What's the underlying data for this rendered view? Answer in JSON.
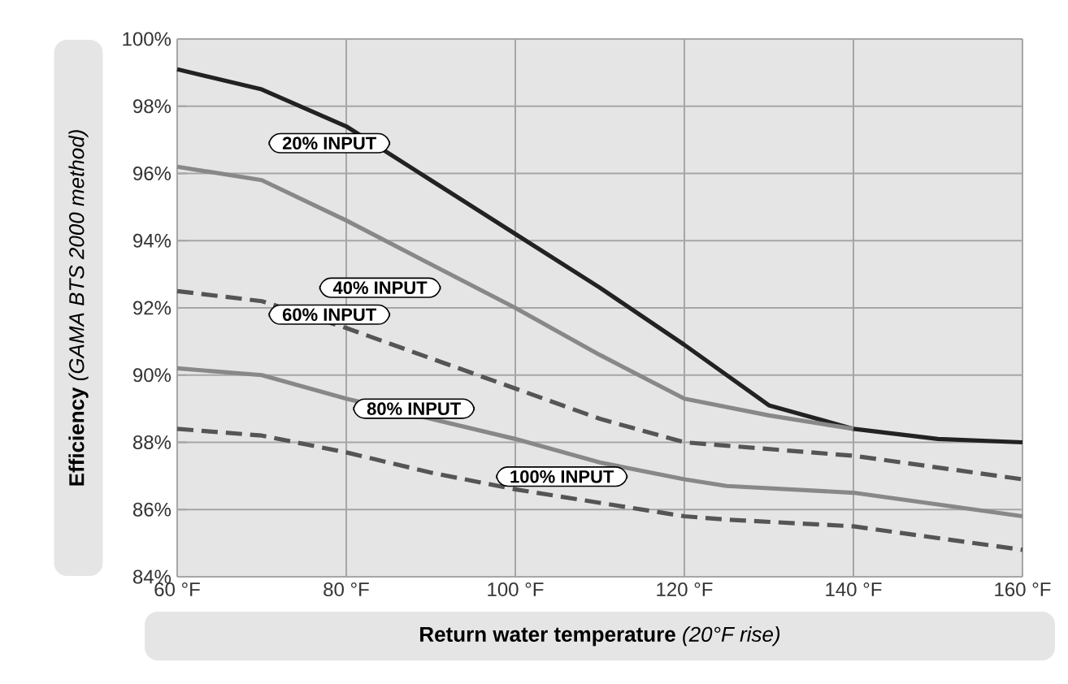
{
  "chart_data": {
    "type": "line",
    "ylabel": "**Efficiency** *(GAMA BTS 2000 method)*",
    "xlabel": "**Return water temperature** *(20°F rise)*",
    "xlim": [
      60,
      160
    ],
    "xticks": [
      {
        "value": 60,
        "label": "60 °F"
      },
      {
        "value": 80,
        "label": "80 °F"
      },
      {
        "value": 100,
        "label": "100 °F"
      },
      {
        "value": 120,
        "label": "120 °F"
      },
      {
        "value": 140,
        "label": "140 °F"
      },
      {
        "value": 160,
        "label": "160 °F"
      }
    ],
    "ylim": [
      84,
      100
    ],
    "yticks": [
      {
        "value": 84,
        "label": "84%"
      },
      {
        "value": 86,
        "label": "86%"
      },
      {
        "value": 88,
        "label": "88%"
      },
      {
        "value": 90,
        "label": "90%"
      },
      {
        "value": 92,
        "label": "92%"
      },
      {
        "value": 94,
        "label": "94%"
      },
      {
        "value": 96,
        "label": "96%"
      },
      {
        "value": 98,
        "label": "98%"
      },
      {
        "value": 100,
        "label": "100%"
      }
    ],
    "grid": true,
    "marker": "none",
    "series": [
      {
        "name": "20% INPUT",
        "color": "#222222",
        "line_style": "solid",
        "x": [
          60,
          70,
          80,
          90,
          100,
          110,
          120,
          130,
          140,
          150,
          160
        ],
        "values": [
          99.1,
          98.5,
          97.4,
          95.8,
          94.2,
          92.6,
          90.9,
          89.1,
          88.4,
          88.1,
          88.0
        ]
      },
      {
        "name": "40% INPUT",
        "color": "#888888",
        "line_style": "solid",
        "x": [
          60,
          70,
          80,
          90,
          100,
          110,
          120,
          130,
          140
        ],
        "values": [
          96.2,
          95.8,
          94.6,
          93.3,
          92.0,
          90.6,
          89.3,
          88.8,
          88.4
        ]
      },
      {
        "name": "60% INPUT",
        "color": "#555555",
        "line_style": "dashed",
        "x": [
          60,
          70,
          80,
          90,
          100,
          110,
          120,
          125,
          140,
          160
        ],
        "values": [
          92.5,
          92.2,
          91.4,
          90.5,
          89.6,
          88.7,
          88.0,
          87.9,
          87.6,
          86.9
        ]
      },
      {
        "name": "80% INPUT",
        "color": "#888888",
        "line_style": "solid",
        "x": [
          60,
          70,
          80,
          90,
          100,
          110,
          120,
          125,
          140,
          160
        ],
        "values": [
          90.2,
          90.0,
          89.3,
          88.7,
          88.1,
          87.4,
          86.9,
          86.7,
          86.5,
          85.8
        ]
      },
      {
        "name": "100% INPUT",
        "color": "#555555",
        "line_style": "dashed",
        "x": [
          60,
          70,
          80,
          90,
          100,
          110,
          120,
          125,
          140,
          160
        ],
        "values": [
          88.4,
          88.2,
          87.7,
          87.1,
          86.6,
          86.2,
          85.8,
          85.7,
          85.5,
          84.8
        ]
      }
    ]
  }
}
